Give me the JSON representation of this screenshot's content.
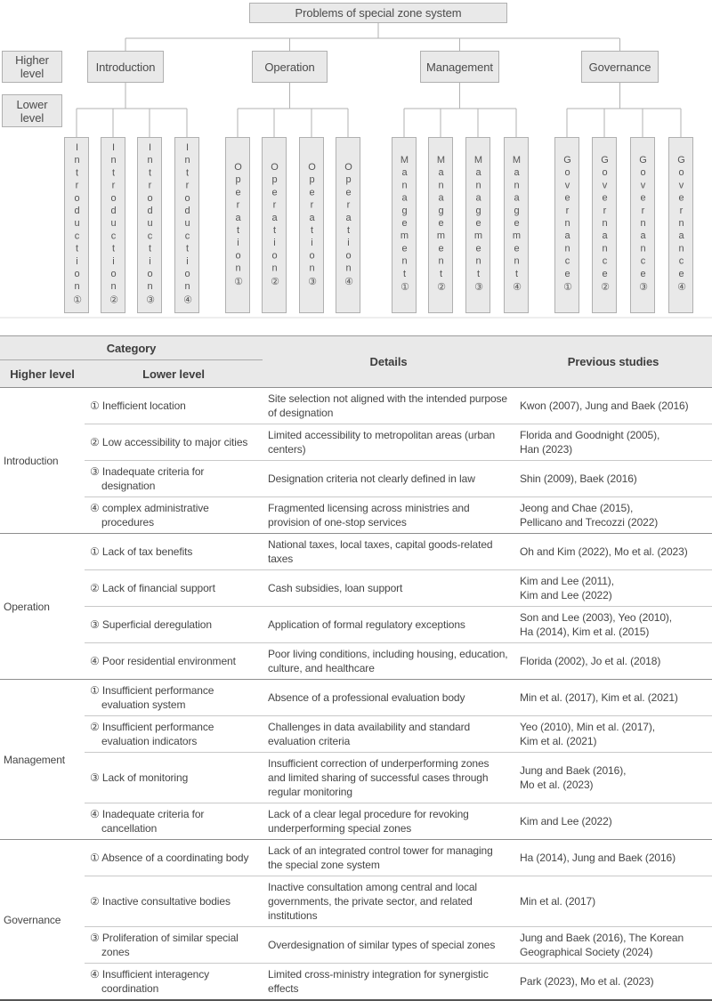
{
  "figure": {
    "root": "Problems of special zone system",
    "side_labels": [
      "Higher level",
      "Lower level"
    ],
    "groups": [
      {
        "label": "Introduction",
        "children": [
          "Introduction①",
          "Introduction②",
          "Introduction③",
          "Introduction④"
        ]
      },
      {
        "label": "Operation",
        "children": [
          "Operation①",
          "Operation②",
          "Operation③",
          "Operation④"
        ]
      },
      {
        "label": "Management",
        "children": [
          "Management①",
          "Management②",
          "Management③",
          "Management④"
        ]
      },
      {
        "label": "Governance",
        "children": [
          "Governance①",
          "Governance②",
          "Governance③",
          "Governance④"
        ]
      }
    ]
  },
  "table": {
    "headers": {
      "category": "Category",
      "higher": "Higher level",
      "lower": "Lower level",
      "details": "Details",
      "studies": "Previous studies"
    },
    "sections": [
      {
        "higher": "Introduction",
        "rows": [
          {
            "lower": "① Inefficient location",
            "details": "Site selection not aligned with the intended purpose of designation",
            "studies": "Kwon (2007), Jung and Baek (2016)"
          },
          {
            "lower": "② Low accessibility to major cities",
            "details": "Limited accessibility to metropolitan areas (urban centers)",
            "studies": "Florida and Goodnight (2005),\nHan (2023)"
          },
          {
            "lower": "③ Inadequate criteria for designation",
            "details": "Designation criteria not clearly defined in law",
            "studies": "Shin (2009), Baek (2016)"
          },
          {
            "lower": "④ complex administrative procedures",
            "details": "Fragmented licensing across ministries and provision of one-stop services",
            "studies": "Jeong and Chae (2015),\nPellicano and Trecozzi (2022)"
          }
        ]
      },
      {
        "higher": "Operation",
        "rows": [
          {
            "lower": "① Lack of tax benefits",
            "details": "National taxes, local taxes, capital goods-related taxes",
            "studies": "Oh and Kim (2022), Mo et al. (2023)"
          },
          {
            "lower": "② Lack of financial support",
            "details": "Cash subsidies, loan support",
            "studies": "Kim and Lee (2011),\nKim and Lee (2022)"
          },
          {
            "lower": "③ Superficial deregulation",
            "details": "Application of formal regulatory exceptions",
            "studies": "Son and Lee (2003), Yeo (2010),\nHa (2014), Kim et al. (2015)"
          },
          {
            "lower": "④ Poor residential environment",
            "details": "Poor living conditions, including housing, education, culture, and healthcare",
            "studies": "Florida (2002), Jo et al. (2018)"
          }
        ]
      },
      {
        "higher": "Management",
        "rows": [
          {
            "lower": "① Insufficient performance evaluation system",
            "details": "Absence of a professional evaluation body",
            "studies": "Min et al. (2017), Kim et al. (2021)"
          },
          {
            "lower": "② Insufficient performance evaluation indicators",
            "details": "Challenges in data availability and standard evaluation criteria",
            "studies": "Yeo (2010), Min et al. (2017),\nKim et al. (2021)"
          },
          {
            "lower": "③ Lack of monitoring",
            "details": "Insufficient correction of underperforming zones and limited sharing of successful cases through regular monitoring",
            "studies": "Jung and Baek (2016),\nMo et al. (2023)"
          },
          {
            "lower": "④ Inadequate criteria for cancellation",
            "details": "Lack of a clear legal procedure for revoking underperforming special zones",
            "studies": "Kim and Lee (2022)"
          }
        ]
      },
      {
        "higher": "Governance",
        "rows": [
          {
            "lower": "① Absence of a coordinating body",
            "details": "Lack of an integrated control tower for managing the special zone system",
            "studies": "Ha (2014), Jung and Baek (2016)"
          },
          {
            "lower": "② Inactive consultative bodies",
            "details": "Inactive consultation among central and local governments, the private sector, and related institutions",
            "studies": "Min et al. (2017)"
          },
          {
            "lower": "③ Proliferation of similar special zones",
            "details": "Overdesignation of similar types of special zones",
            "studies": "Jung and Baek (2016), The Korean Geographical Society (2024)"
          },
          {
            "lower": "④ Insufficient interagency coordination",
            "details": "Limited cross-ministry integration for synergistic effects",
            "studies": "Park (2023), Mo et al. (2023)"
          }
        ]
      }
    ]
  }
}
